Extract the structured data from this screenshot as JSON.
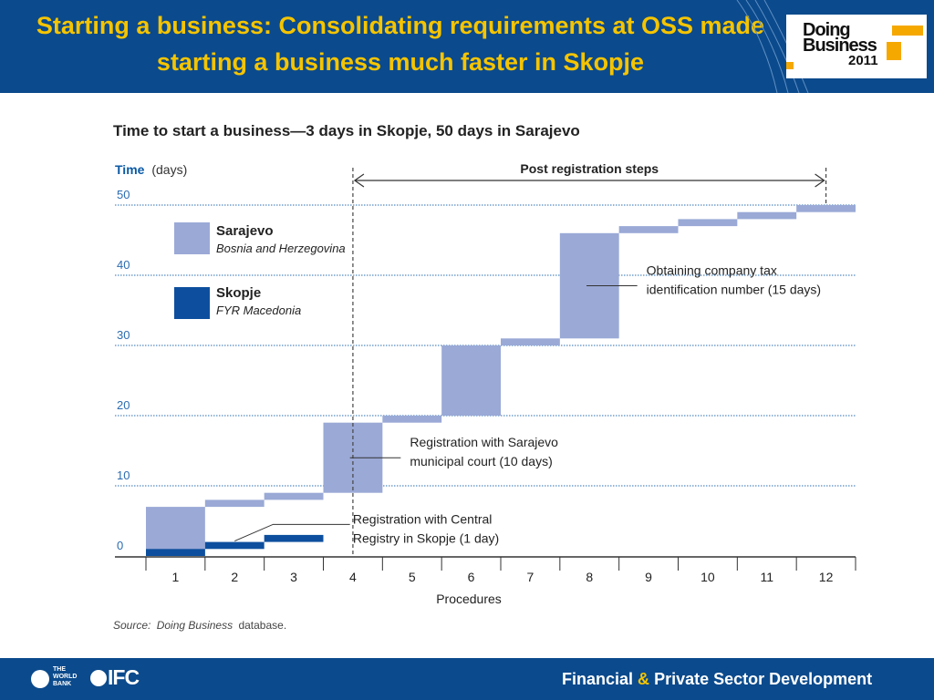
{
  "slide_title": "Starting a business: Consolidating requirements at OSS made starting a business much faster in Skopje",
  "logo": {
    "line1": "Doing",
    "line2": "Business",
    "year": "2011"
  },
  "footer": {
    "wb_label": "THE WORLD BANK",
    "ifc_label": "IFC",
    "fpsd_part1": "Financial",
    "fpsd_amp": "&",
    "fpsd_part2": "Private Sector Development"
  },
  "colors": {
    "header_bg": "#0b4a8c",
    "title": "#f5c400",
    "sarajevo": "#9aa9d6",
    "skopje": "#0d4f9e",
    "grid": "#2b6cb0"
  },
  "chart_data": {
    "type": "waterfall",
    "title": "Time to start a business—3 days in Skopje, 50 days in Sarajevo",
    "ylabel": "Time",
    "ylabel_unit": "(days)",
    "xlabel": "Procedures",
    "ylim": [
      0,
      50
    ],
    "yticks": [
      0,
      10,
      20,
      30,
      40,
      50
    ],
    "categories": [
      "1",
      "2",
      "3",
      "4",
      "5",
      "6",
      "7",
      "8",
      "9",
      "10",
      "11",
      "12"
    ],
    "series": [
      {
        "name": "Sarajevo",
        "subtitle": "Bosnia and Herzegovina",
        "color": "#9aa9d6",
        "steps": [
          [
            0,
            7
          ],
          [
            7,
            8
          ],
          [
            8,
            9
          ],
          [
            9,
            19
          ],
          [
            19,
            20
          ],
          [
            20,
            30
          ],
          [
            30,
            31
          ],
          [
            31,
            46
          ],
          [
            46,
            47
          ],
          [
            47,
            48
          ],
          [
            48,
            49
          ],
          [
            49,
            50
          ]
        ]
      },
      {
        "name": "Skopje",
        "subtitle": "FYR Macedonia",
        "color": "#0d4f9e",
        "steps": [
          [
            0,
            1
          ],
          [
            1,
            2
          ],
          [
            2,
            3
          ]
        ]
      }
    ],
    "annotations": [
      {
        "procedure": 8,
        "line1": "Obtaining company tax",
        "line2": "identification number (15 days)"
      },
      {
        "procedure": 4,
        "line1": "Registration with Sarajevo",
        "line2": "municipal court (10 days)"
      },
      {
        "procedure": 2,
        "line1": "Registration with Central",
        "line2": "Registry in Skopje (1 day)"
      }
    ],
    "bracket": {
      "label": "Post registration steps",
      "from_procedure": 4.5,
      "to_procedure": 12.5
    },
    "source_label": "Source:",
    "source_italic": "Doing Business",
    "source_rest": "database."
  }
}
